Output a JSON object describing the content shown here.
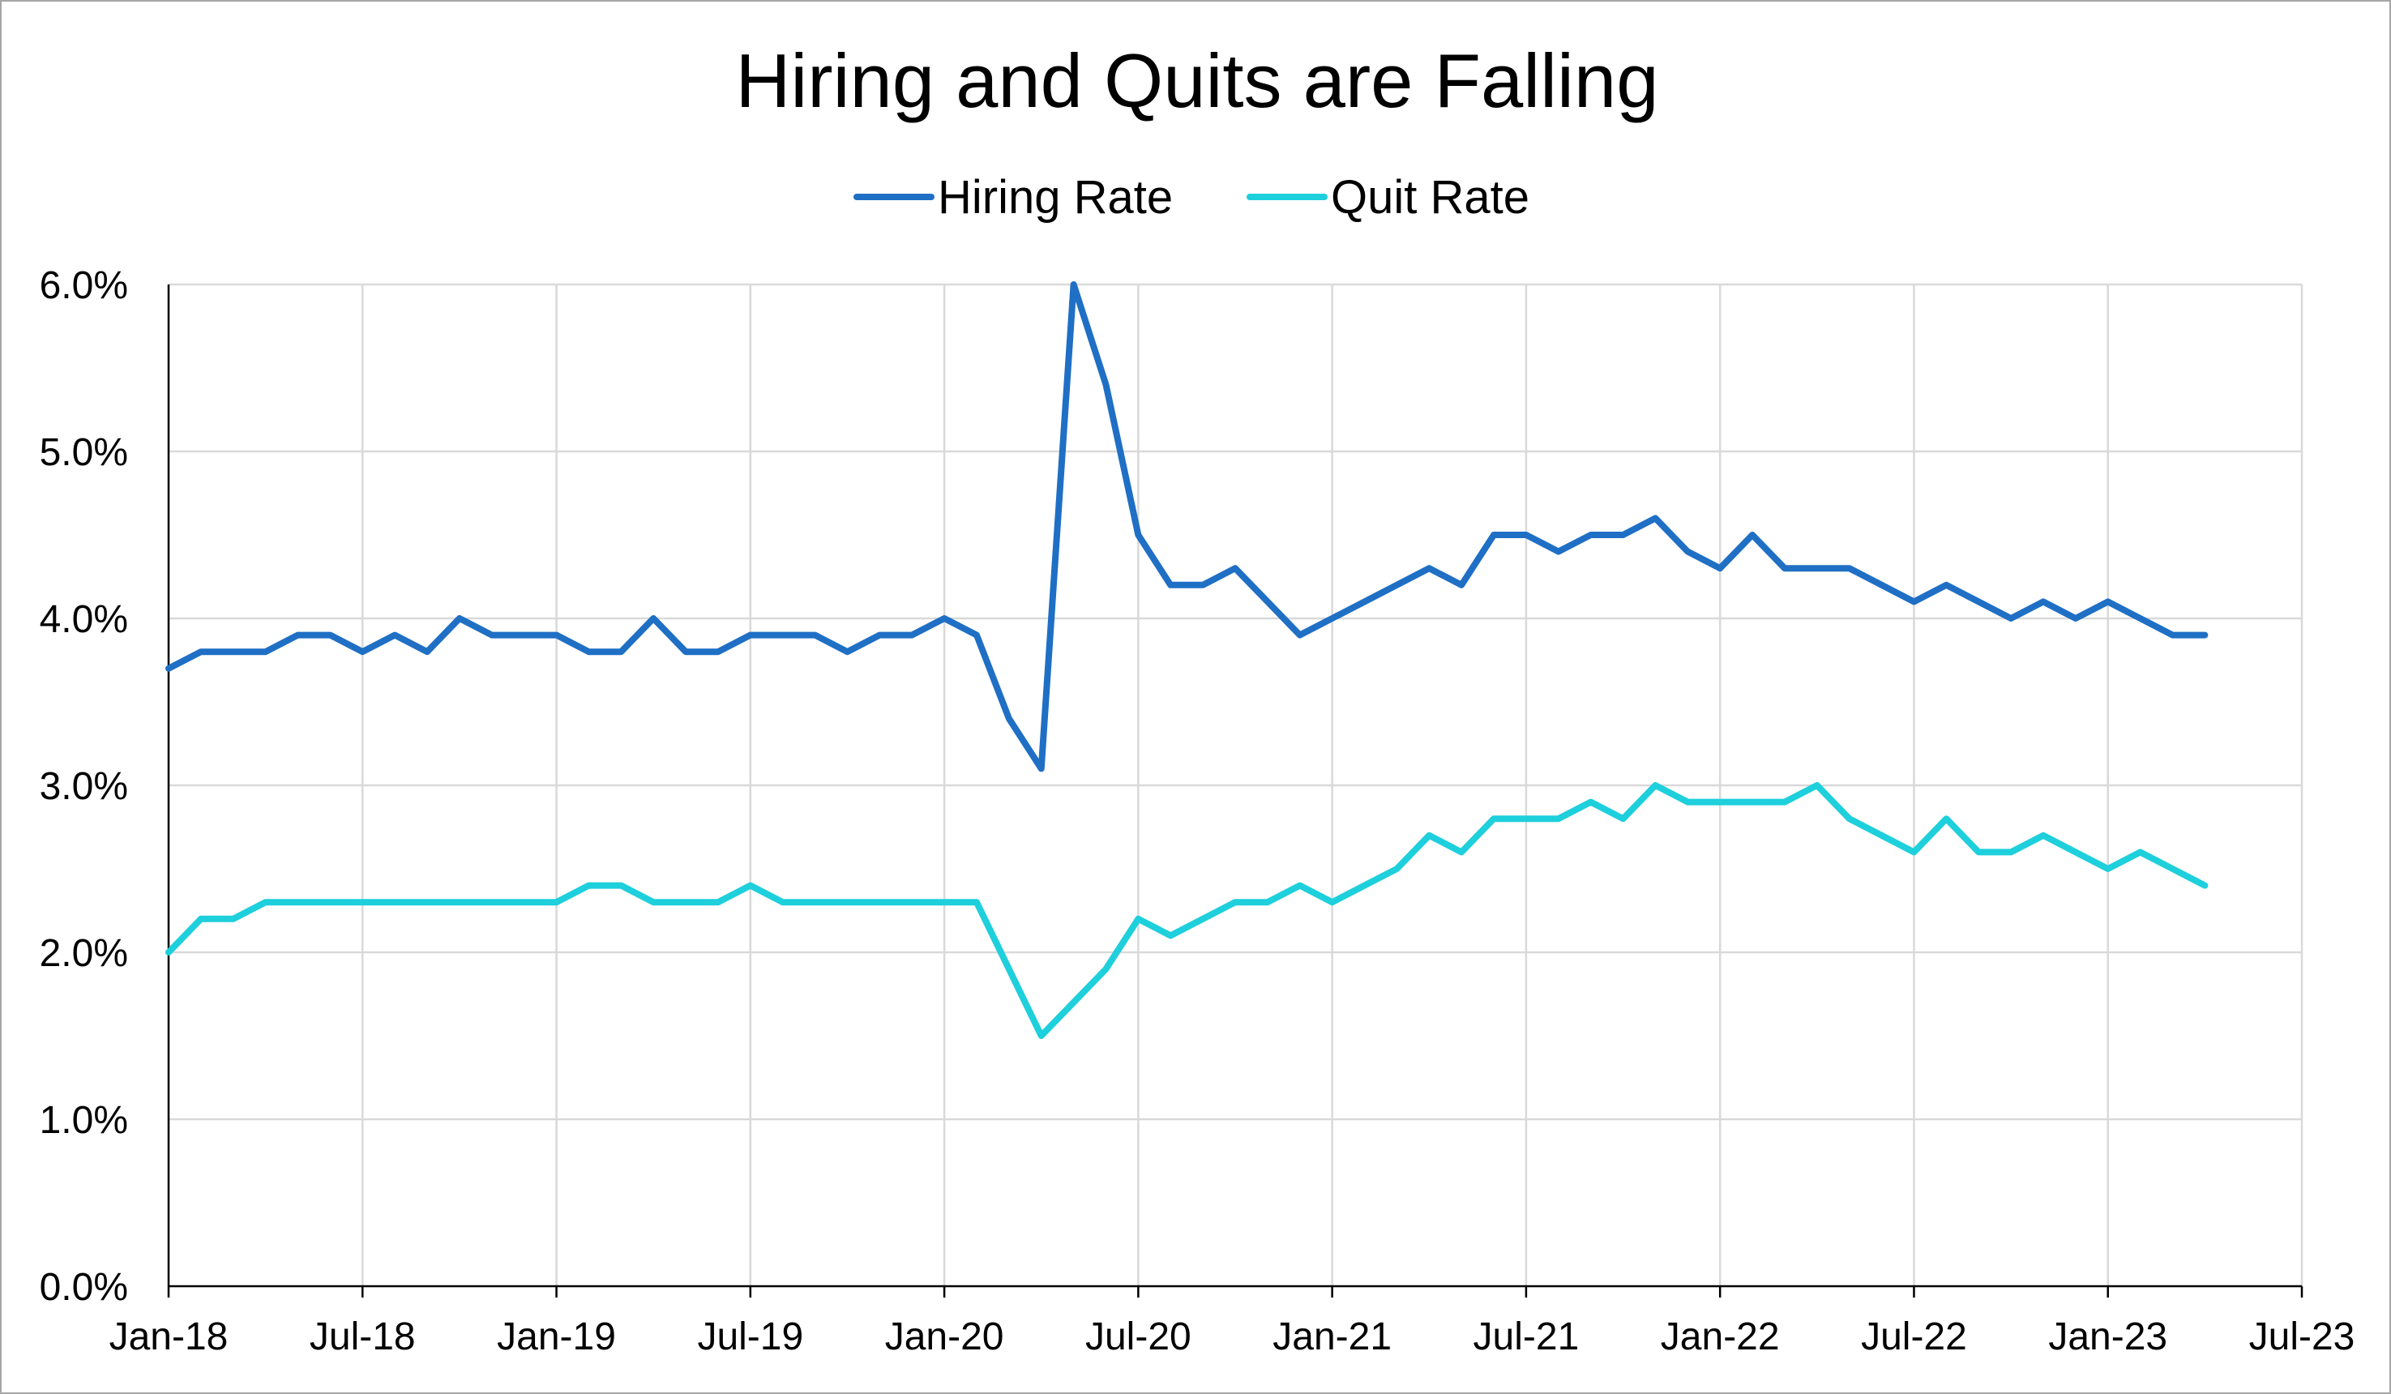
{
  "chart_data": {
    "type": "line",
    "title": "Hiring and Quits are Falling",
    "xlabel": "",
    "ylabel": "",
    "ylim": [
      0,
      6
    ],
    "y_ticks": [
      "0.0%",
      "1.0%",
      "2.0%",
      "3.0%",
      "4.0%",
      "5.0%",
      "6.0%"
    ],
    "x_tick_labels": [
      "Jan-18",
      "Jul-18",
      "Jan-19",
      "Jul-19",
      "Jan-20",
      "Jul-20",
      "Jan-21",
      "Jul-21",
      "Jan-22",
      "Jul-22",
      "Jan-23",
      "Jul-23"
    ],
    "x_start": "2018-01",
    "x": [
      "2018-01",
      "2018-02",
      "2018-03",
      "2018-04",
      "2018-05",
      "2018-06",
      "2018-07",
      "2018-08",
      "2018-09",
      "2018-10",
      "2018-11",
      "2018-12",
      "2019-01",
      "2019-02",
      "2019-03",
      "2019-04",
      "2019-05",
      "2019-06",
      "2019-07",
      "2019-08",
      "2019-09",
      "2019-10",
      "2019-11",
      "2019-12",
      "2020-01",
      "2020-02",
      "2020-03",
      "2020-04",
      "2020-05",
      "2020-06",
      "2020-07",
      "2020-08",
      "2020-09",
      "2020-10",
      "2020-11",
      "2020-12",
      "2021-01",
      "2021-02",
      "2021-03",
      "2021-04",
      "2021-05",
      "2021-06",
      "2021-07",
      "2021-08",
      "2021-09",
      "2021-10",
      "2021-11",
      "2021-12",
      "2022-01",
      "2022-02",
      "2022-03",
      "2022-04",
      "2022-05",
      "2022-06",
      "2022-07",
      "2022-08",
      "2022-09",
      "2022-10",
      "2022-11",
      "2022-12",
      "2023-01",
      "2023-02",
      "2023-03",
      "2023-04"
    ],
    "grid": true,
    "legend_position": "top",
    "series": [
      {
        "name": "Hiring Rate",
        "color": "#1f6fc5",
        "values": [
          3.7,
          3.8,
          3.8,
          3.8,
          3.9,
          3.9,
          3.8,
          3.9,
          3.8,
          4.0,
          3.9,
          3.9,
          3.9,
          3.8,
          3.8,
          4.0,
          3.8,
          3.8,
          3.9,
          3.9,
          3.9,
          3.8,
          3.9,
          3.9,
          4.0,
          3.9,
          3.4,
          3.1,
          6.0,
          5.4,
          4.5,
          4.2,
          4.2,
          4.3,
          4.1,
          3.9,
          4.0,
          4.1,
          4.2,
          4.3,
          4.2,
          4.5,
          4.5,
          4.4,
          4.5,
          4.5,
          4.6,
          4.4,
          4.3,
          4.5,
          4.3,
          4.3,
          4.3,
          4.2,
          4.1,
          4.2,
          4.1,
          4.0,
          4.1,
          4.0,
          4.1,
          4.0,
          3.9,
          3.9
        ]
      },
      {
        "name": "Quit Rate",
        "color": "#1ecfdc",
        "values": [
          2.0,
          2.2,
          2.2,
          2.3,
          2.3,
          2.3,
          2.3,
          2.3,
          2.3,
          2.3,
          2.3,
          2.3,
          2.3,
          2.4,
          2.4,
          2.3,
          2.3,
          2.3,
          2.4,
          2.3,
          2.3,
          2.3,
          2.3,
          2.3,
          2.3,
          2.3,
          1.9,
          1.5,
          1.7,
          1.9,
          2.2,
          2.1,
          2.2,
          2.3,
          2.3,
          2.4,
          2.3,
          2.4,
          2.5,
          2.7,
          2.6,
          2.8,
          2.8,
          2.8,
          2.9,
          2.8,
          3.0,
          2.9,
          2.9,
          2.9,
          2.9,
          3.0,
          2.8,
          2.7,
          2.6,
          2.8,
          2.6,
          2.6,
          2.7,
          2.6,
          2.5,
          2.6,
          2.5,
          2.4
        ]
      }
    ]
  }
}
